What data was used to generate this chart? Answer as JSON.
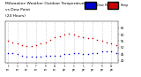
{
  "title_line1": "Milwaukee Weather Outdoor Temperature",
  "title_line2": "vs Dew Point",
  "title_line3": "(24 Hours)",
  "legend_labels": [
    "Dew Point",
    "Temp"
  ],
  "legend_colors": [
    "#0000cc",
    "#cc0000"
  ],
  "background_color": "#ffffff",
  "grid_color": "#bbbbbb",
  "ylim": [
    38,
    70
  ],
  "yticks": [
    40,
    45,
    50,
    55,
    60,
    65
  ],
  "num_hours": 24,
  "temp_data": [
    55,
    54,
    53,
    52,
    51,
    51,
    52,
    53,
    54,
    56,
    58,
    59,
    60,
    61,
    60,
    59,
    58,
    57,
    57,
    56,
    55,
    54,
    53,
    52
  ],
  "dew_data": [
    46,
    46,
    45,
    44,
    43,
    43,
    43,
    43,
    44,
    44,
    44,
    44,
    45,
    45,
    46,
    46,
    45,
    45,
    46,
    46,
    47,
    47,
    47,
    46
  ],
  "xtick_positions": [
    0,
    2,
    4,
    6,
    8,
    10,
    12,
    14,
    16,
    18,
    20,
    22
  ],
  "xtick_labels": [
    "1\nam",
    "3\nam",
    "5\nam",
    "7\nam",
    "9\nam",
    "11\nam",
    "1\npm",
    "3\npm",
    "5\npm",
    "7\npm",
    "9\npm",
    "11\npm"
  ]
}
